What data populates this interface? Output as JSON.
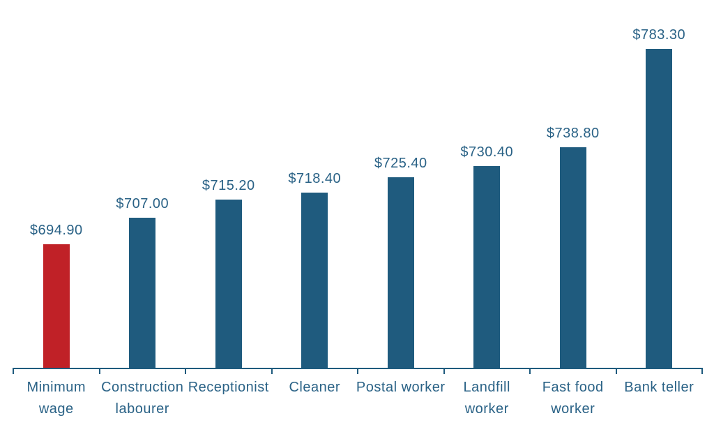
{
  "colors": {
    "bar_blue": "#1f5b7e",
    "bar_red": "#c02127",
    "text_teal": "#2a6286",
    "axis": "#1f5b7e"
  },
  "chart_data": {
    "type": "bar",
    "title": "",
    "xlabel": "",
    "ylabel": "",
    "categories": [
      "Minimum wage",
      "Construction labourer",
      "Receptionist",
      "Cleaner",
      "Postal worker",
      "Landfill worker",
      "Fast food worker",
      "Bank teller"
    ],
    "label_lines": [
      [
        "Minimum",
        "wage"
      ],
      [
        "Construction",
        "labourer"
      ],
      [
        "Receptionist"
      ],
      [
        "Cleaner"
      ],
      [
        "Postal worker"
      ],
      [
        "Landfill",
        "worker"
      ],
      [
        "Fast food",
        "worker"
      ],
      [
        "Bank teller"
      ]
    ],
    "values": [
      694.9,
      707.0,
      715.2,
      718.4,
      725.4,
      730.4,
      738.8,
      783.3
    ],
    "value_labels": [
      "$694.90",
      "$707.00",
      "$715.20",
      "$718.40",
      "$725.40",
      "$730.40",
      "$738.80",
      "$783.30"
    ],
    "bar_color_keys": [
      "bar_red",
      "bar_blue",
      "bar_blue",
      "bar_blue",
      "bar_blue",
      "bar_blue",
      "bar_blue",
      "bar_blue"
    ],
    "highlight_index": 0,
    "ylim": [
      639,
      785
    ],
    "grid": false,
    "legend": false,
    "data_labels_position": "above-bar",
    "axis_ticks": "category-boundaries"
  }
}
